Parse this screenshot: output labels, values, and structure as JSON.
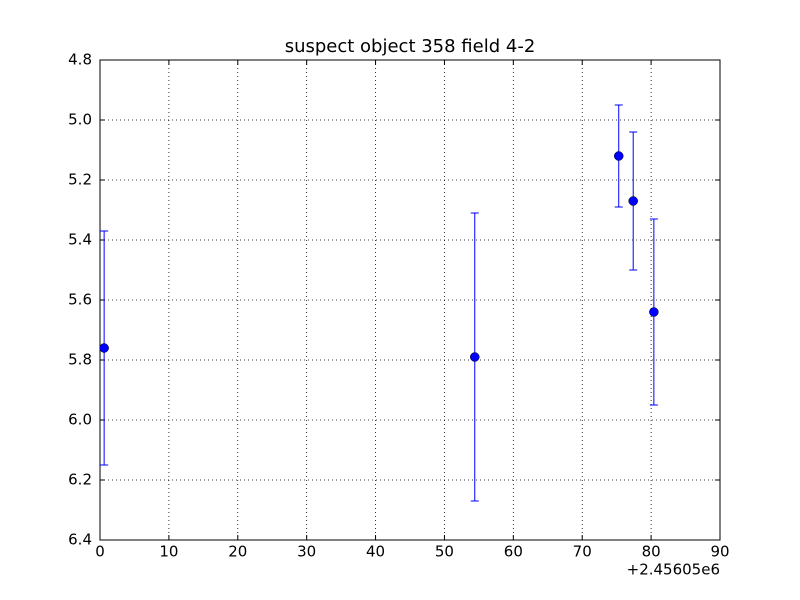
{
  "chart_data": {
    "type": "errorbar",
    "title": "suspect object 358 field 4-2",
    "x": [
      0.6,
      54.4,
      75.3,
      77.4,
      80.4
    ],
    "values": [
      5.76,
      5.79,
      5.12,
      5.27,
      5.64
    ],
    "errors": [
      0.39,
      0.48,
      0.17,
      0.23,
      0.31
    ],
    "color": "#0000ff",
    "xlim": [
      0,
      90
    ],
    "xticks": [
      0,
      10,
      20,
      30,
      40,
      50,
      60,
      70,
      80,
      90
    ],
    "x_offset_label": "+2.45605e6",
    "ylim": [
      4.8,
      6.4
    ],
    "y_inverted": true,
    "yticks": [
      4.8,
      {
        "value": 5,
        "label": "5.0"
      },
      5.2,
      5.4,
      5.6,
      5.8,
      {
        "value": 6,
        "label": "6.0"
      },
      6.2,
      6.4
    ],
    "grid": true
  }
}
